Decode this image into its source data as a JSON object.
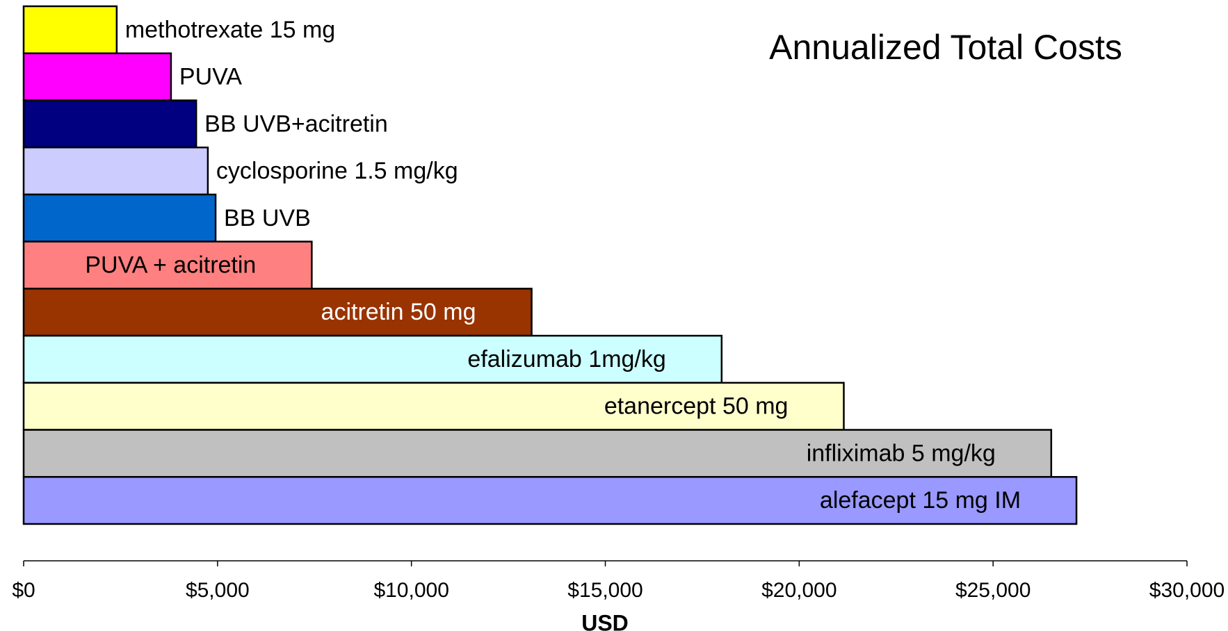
{
  "chart_data": {
    "type": "bar",
    "orientation": "horizontal",
    "title": "Annualized Total Costs",
    "x_label": "USD",
    "categories": [
      "methotrexate 15 mg",
      "PUVA",
      "BB UVB+acitretin",
      "cyclosporine 1.5 mg/kg",
      "BB UVB",
      "PUVA + acitretin",
      "acitretin 50 mg",
      "efalizumab 1mg/kg",
      "etanercept 50 mg",
      "infliximab 5 mg/kg",
      "alefacept 15 mg IM"
    ],
    "values": [
      2400,
      3800,
      4450,
      4750,
      4950,
      7430,
      13100,
      18000,
      21150,
      26500,
      27150
    ],
    "colors": [
      "#ffff00",
      "#ff00ff",
      "#000080",
      "#ccccff",
      "#0066cc",
      "#ff8080",
      "#993300",
      "#ccffff",
      "#ffffcc",
      "#c0c0c0",
      "#9999ff"
    ],
    "xlim": [
      0,
      30000
    ],
    "xticks": [
      {
        "value": 0,
        "label": "$0"
      },
      {
        "value": 5000,
        "label": "$5,000"
      },
      {
        "value": 10000,
        "label": "$10,000"
      },
      {
        "value": 15000,
        "label": "$15,000"
      },
      {
        "value": 20000,
        "label": "$20,000"
      },
      {
        "value": 25000,
        "label": "$25,000"
      },
      {
        "value": 30000,
        "label": "$30,000"
      }
    ]
  }
}
